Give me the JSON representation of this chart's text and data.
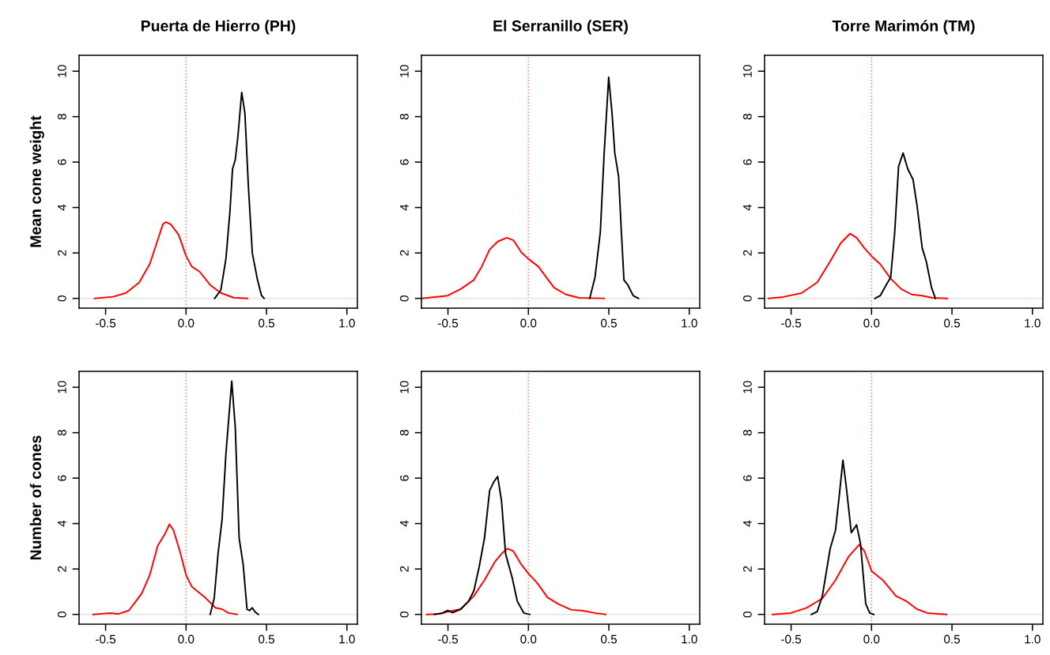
{
  "chart_data": [
    {
      "type": "line",
      "title": "Puerta de Hierro (PH)",
      "ylabel": "Mean cone weight",
      "xlim": [
        -0.665,
        1.065
      ],
      "ylim": [
        -0.43,
        10.7
      ],
      "xticks": [
        {
          "value": -0.5,
          "label": "-0.5"
        },
        {
          "value": 0,
          "label": "0.0"
        },
        {
          "value": 0.5,
          "label": "0.5"
        },
        {
          "value": 1,
          "label": "1.0"
        }
      ],
      "yticks": [
        0,
        2,
        4,
        6,
        8,
        10
      ],
      "grid": false,
      "ref_lines": [
        {
          "axis": "x",
          "value": 0,
          "color": "#f08080",
          "line_style": "dotted"
        },
        {
          "axis": "y",
          "value": 0,
          "color": "#e6e6e6",
          "line_style": "solid"
        }
      ],
      "series": [
        {
          "color": "#ff0000",
          "x": [
            -0.569,
            -0.454,
            -0.373,
            -0.291,
            -0.225,
            -0.176,
            -0.144,
            -0.124,
            -0.095,
            -0.046,
            0,
            0.036,
            0.085,
            0.15,
            0.216,
            0.297,
            0.382
          ],
          "values": [
            0,
            0.07,
            0.24,
            0.7,
            1.52,
            2.57,
            3.26,
            3.36,
            3.26,
            2.8,
            1.87,
            1.4,
            1.17,
            0.59,
            0.24,
            0.03,
            0
          ]
        },
        {
          "color": "#000000",
          "x": [
            0.178,
            0.216,
            0.248,
            0.273,
            0.289,
            0.306,
            0.322,
            0.346,
            0.366,
            0.387,
            0.412,
            0.444,
            0.469,
            0.485
          ],
          "values": [
            0,
            0.36,
            1.75,
            3.84,
            5.7,
            6.1,
            7.1,
            9.07,
            8.14,
            5.0,
            1.99,
            0.82,
            0.13,
            0
          ]
        }
      ]
    },
    {
      "type": "line",
      "title": "El Serranillo (SER)",
      "xlim": [
        -0.665,
        1.065
      ],
      "ylim": [
        -0.43,
        10.7
      ],
      "xticks": [
        {
          "value": -0.5,
          "label": "-0.5"
        },
        {
          "value": 0,
          "label": "0.0"
        },
        {
          "value": 0.5,
          "label": "0.5"
        },
        {
          "value": 1,
          "label": "1.0"
        }
      ],
      "yticks": [
        0,
        2,
        4,
        6,
        8,
        10
      ],
      "grid": false,
      "ref_lines": [
        {
          "axis": "x",
          "value": 0,
          "color": "#f08080",
          "line_style": "dotted"
        },
        {
          "axis": "y",
          "value": 0,
          "color": "#e6e6e6",
          "line_style": "solid"
        }
      ],
      "series": [
        {
          "color": "#ff0000",
          "x": [
            -0.664,
            -0.502,
            -0.421,
            -0.339,
            -0.29,
            -0.241,
            -0.191,
            -0.134,
            -0.093,
            -0.044,
            0,
            0.062,
            0.111,
            0.16,
            0.234,
            0.316,
            0.471
          ],
          "values": [
            0,
            0.12,
            0.41,
            0.81,
            1.4,
            2.15,
            2.5,
            2.67,
            2.56,
            2.03,
            1.74,
            1.4,
            0.93,
            0.47,
            0.17,
            0.02,
            0
          ]
        },
        {
          "color": "#000000",
          "x": [
            0.381,
            0.414,
            0.447,
            0.471,
            0.499,
            0.52,
            0.537,
            0.561,
            0.578,
            0.594,
            0.619,
            0.651,
            0.684
          ],
          "values": [
            0,
            0.93,
            2.91,
            6.4,
            9.74,
            8.14,
            6.4,
            5.35,
            2.91,
            0.81,
            0.58,
            0.12,
            0
          ]
        }
      ]
    },
    {
      "type": "line",
      "title": "Torre Marimón (TM)",
      "xlim": [
        -0.665,
        1.065
      ],
      "ylim": [
        -0.43,
        10.7
      ],
      "xticks": [
        {
          "value": -0.5,
          "label": "-0.5"
        },
        {
          "value": 0,
          "label": "0.0"
        },
        {
          "value": 0.5,
          "label": "0.5"
        },
        {
          "value": 1,
          "label": "1.0"
        }
      ],
      "yticks": [
        0,
        2,
        4,
        6,
        8,
        10
      ],
      "grid": false,
      "ref_lines": [
        {
          "axis": "x",
          "value": 0,
          "color": "#f08080",
          "line_style": "dotted"
        },
        {
          "axis": "y",
          "value": 0,
          "color": "#e6e6e6",
          "line_style": "solid"
        }
      ],
      "series": [
        {
          "color": "#ff0000",
          "x": [
            -0.641,
            -0.551,
            -0.436,
            -0.338,
            -0.257,
            -0.191,
            -0.134,
            -0.093,
            -0.044,
            0,
            0.054,
            0.119,
            0.185,
            0.25,
            0.315,
            0.381,
            0.471
          ],
          "values": [
            0,
            0.06,
            0.23,
            0.7,
            1.63,
            2.44,
            2.85,
            2.67,
            2.21,
            1.86,
            1.51,
            0.87,
            0.41,
            0.17,
            0.12,
            0.02,
            0
          ]
        },
        {
          "color": "#000000",
          "x": [
            0.021,
            0.054,
            0.095,
            0.119,
            0.144,
            0.168,
            0.196,
            0.225,
            0.258,
            0.283,
            0.315,
            0.34,
            0.373,
            0.397
          ],
          "values": [
            0,
            0.12,
            0.64,
            0.93,
            2.91,
            5.81,
            6.4,
            5.7,
            5.23,
            4.07,
            2.21,
            1.63,
            0.47,
            0
          ]
        }
      ]
    },
    {
      "type": "line",
      "ylabel": "Number of cones",
      "xlim": [
        -0.665,
        1.065
      ],
      "ylim": [
        -0.43,
        10.7
      ],
      "xticks": [
        {
          "value": -0.5,
          "label": "-0.5"
        },
        {
          "value": 0,
          "label": "0.0"
        },
        {
          "value": 0.5,
          "label": "0.5"
        },
        {
          "value": 1,
          "label": "1.0"
        }
      ],
      "yticks": [
        0,
        2,
        4,
        6,
        8,
        10
      ],
      "grid": false,
      "ref_lines": [
        {
          "axis": "x",
          "value": 0,
          "color": "#f08080",
          "line_style": "dotted"
        },
        {
          "axis": "y",
          "value": 0,
          "color": "#e6e6e6",
          "line_style": "solid"
        }
      ],
      "series": [
        {
          "color": "#ff0000",
          "x": [
            -0.577,
            -0.471,
            -0.422,
            -0.356,
            -0.324,
            -0.275,
            -0.225,
            -0.176,
            -0.127,
            -0.103,
            -0.078,
            -0.038,
            0,
            0.036,
            0.118,
            0.183,
            0.224,
            0.265,
            0.317
          ],
          "values": [
            0,
            0.06,
            0.02,
            0.17,
            0.46,
            0.93,
            1.74,
            3.02,
            3.6,
            3.97,
            3.71,
            2.78,
            1.74,
            1.22,
            0.75,
            0.29,
            0.23,
            0.06,
            0
          ]
        },
        {
          "color": "#000000",
          "x": [
            0.15,
            0.175,
            0.199,
            0.224,
            0.248,
            0.284,
            0.306,
            0.33,
            0.355,
            0.379,
            0.395,
            0.412,
            0.428,
            0.449
          ],
          "values": [
            0,
            0.7,
            2.67,
            4.18,
            7.08,
            10.27,
            8.24,
            3.36,
            2.2,
            0.23,
            0.17,
            0.29,
            0.12,
            0
          ]
        }
      ]
    },
    {
      "type": "line",
      "xlim": [
        -0.665,
        1.065
      ],
      "ylim": [
        -0.43,
        10.7
      ],
      "xticks": [
        {
          "value": -0.5,
          "label": "-0.5"
        },
        {
          "value": 0,
          "label": "0.0"
        },
        {
          "value": 0.5,
          "label": "0.5"
        },
        {
          "value": 1,
          "label": "1.0"
        }
      ],
      "yticks": [
        0,
        2,
        4,
        6,
        8,
        10
      ],
      "grid": false,
      "ref_lines": [
        {
          "axis": "x",
          "value": 0,
          "color": "#f08080",
          "line_style": "dotted"
        },
        {
          "axis": "y",
          "value": 0,
          "color": "#e6e6e6",
          "line_style": "solid"
        }
      ],
      "series": [
        {
          "color": "#ff0000",
          "x": [
            -0.633,
            -0.552,
            -0.502,
            -0.421,
            -0.339,
            -0.273,
            -0.208,
            -0.159,
            -0.129,
            -0.093,
            -0.044,
            0,
            0.054,
            0.119,
            0.185,
            0.267,
            0.332,
            0.414,
            0.48
          ],
          "values": [
            0,
            0.02,
            0.12,
            0.23,
            0.81,
            1.51,
            2.32,
            2.73,
            2.9,
            2.78,
            2.2,
            1.8,
            1.39,
            0.75,
            0.46,
            0.2,
            0.17,
            0.06,
            0
          ]
        },
        {
          "color": "#000000",
          "x": [
            -0.584,
            -0.535,
            -0.502,
            -0.47,
            -0.421,
            -0.372,
            -0.339,
            -0.306,
            -0.273,
            -0.241,
            -0.216,
            -0.191,
            -0.167,
            -0.142,
            -0.101,
            -0.069,
            -0.028,
            0.008
          ],
          "values": [
            0,
            0.06,
            0.17,
            0.08,
            0.23,
            0.58,
            1.04,
            2.09,
            3.36,
            5.45,
            5.82,
            6.07,
            4.99,
            2.67,
            1.62,
            0.58,
            0.06,
            0
          ]
        }
      ]
    },
    {
      "type": "line",
      "xlim": [
        -0.665,
        1.065
      ],
      "ylim": [
        -0.43,
        10.7
      ],
      "xticks": [
        {
          "value": -0.5,
          "label": "-0.5"
        },
        {
          "value": 0,
          "label": "0.0"
        },
        {
          "value": 0.5,
          "label": "0.5"
        },
        {
          "value": 1,
          "label": "1.0"
        }
      ],
      "yticks": [
        0,
        2,
        4,
        6,
        8,
        10
      ],
      "grid": false,
      "ref_lines": [
        {
          "axis": "x",
          "value": 0,
          "color": "#f08080",
          "line_style": "dotted"
        },
        {
          "axis": "y",
          "value": 0,
          "color": "#e6e6e6",
          "line_style": "solid"
        }
      ],
      "series": [
        {
          "color": "#ff0000",
          "x": [
            -0.616,
            -0.502,
            -0.404,
            -0.306,
            -0.224,
            -0.142,
            -0.077,
            -0.044,
            0,
            0.07,
            0.152,
            0.217,
            0.283,
            0.348,
            0.466
          ],
          "values": [
            0,
            0.06,
            0.29,
            0.7,
            1.51,
            2.55,
            3.07,
            2.78,
            1.91,
            1.51,
            0.81,
            0.58,
            0.23,
            0.06,
            0
          ]
        },
        {
          "color": "#000000",
          "x": [
            -0.374,
            -0.338,
            -0.306,
            -0.257,
            -0.224,
            -0.199,
            -0.178,
            -0.158,
            -0.126,
            -0.093,
            -0.069,
            -0.036,
            -0.011,
            0.013
          ],
          "values": [
            0,
            0.12,
            0.81,
            2.9,
            3.71,
            5.34,
            6.79,
            5.68,
            3.6,
            3.94,
            3.13,
            0.46,
            0.06,
            0
          ]
        }
      ]
    }
  ]
}
